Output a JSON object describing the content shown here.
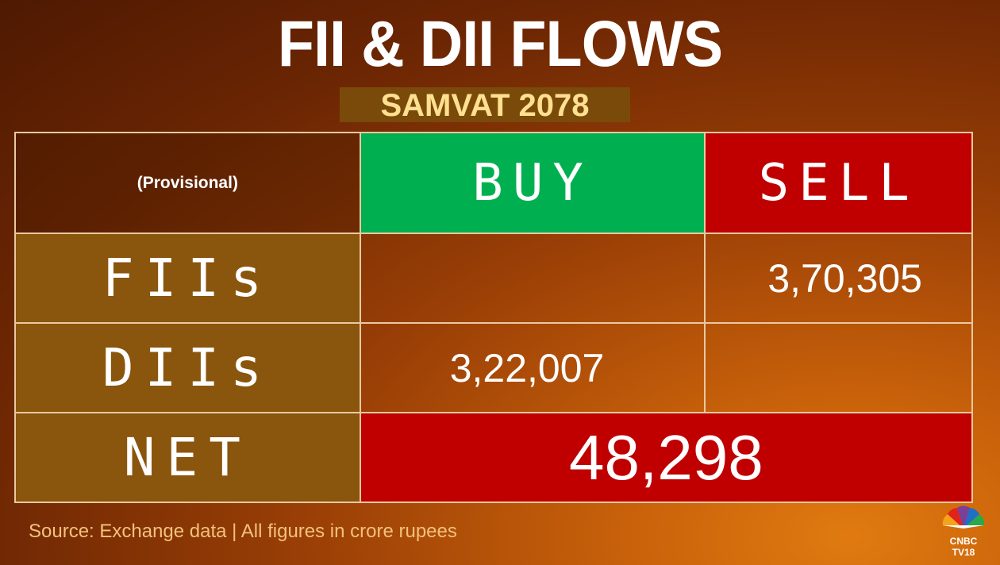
{
  "header": {
    "title": "FII & DII FLOWS",
    "subtitle": "SAMVAT 2078"
  },
  "table": {
    "corner_label": "(Provisional)",
    "col_buy": "BUY",
    "col_sell": "SELL",
    "rows": [
      {
        "label": "FIIs",
        "buy": "",
        "sell": "3,70,305"
      },
      {
        "label": "DIIs",
        "buy": "3,22,007",
        "sell": ""
      }
    ],
    "net_label": "NET",
    "net_value": "48,298"
  },
  "footer": {
    "source": "Source: Exchange data | All figures in crore rupees",
    "logo_top": "CNBC",
    "logo_bottom": "TV18"
  },
  "chart_data": {
    "type": "table",
    "title": "FII & DII FLOWS",
    "subtitle": "SAMVAT 2078",
    "columns": [
      "(Provisional)",
      "BUY",
      "SELL"
    ],
    "rows": [
      [
        "FIIs",
        "",
        "3,70,305"
      ],
      [
        "DIIs",
        "3,22,007",
        ""
      ],
      [
        "NET",
        "48,298",
        ""
      ]
    ],
    "colors": {
      "buy_header": "#00b050",
      "sell_header": "#c00000",
      "net_cell": "#c00000",
      "label_cells": "#8a550c",
      "subtitle_text": "#ffe090"
    }
  }
}
